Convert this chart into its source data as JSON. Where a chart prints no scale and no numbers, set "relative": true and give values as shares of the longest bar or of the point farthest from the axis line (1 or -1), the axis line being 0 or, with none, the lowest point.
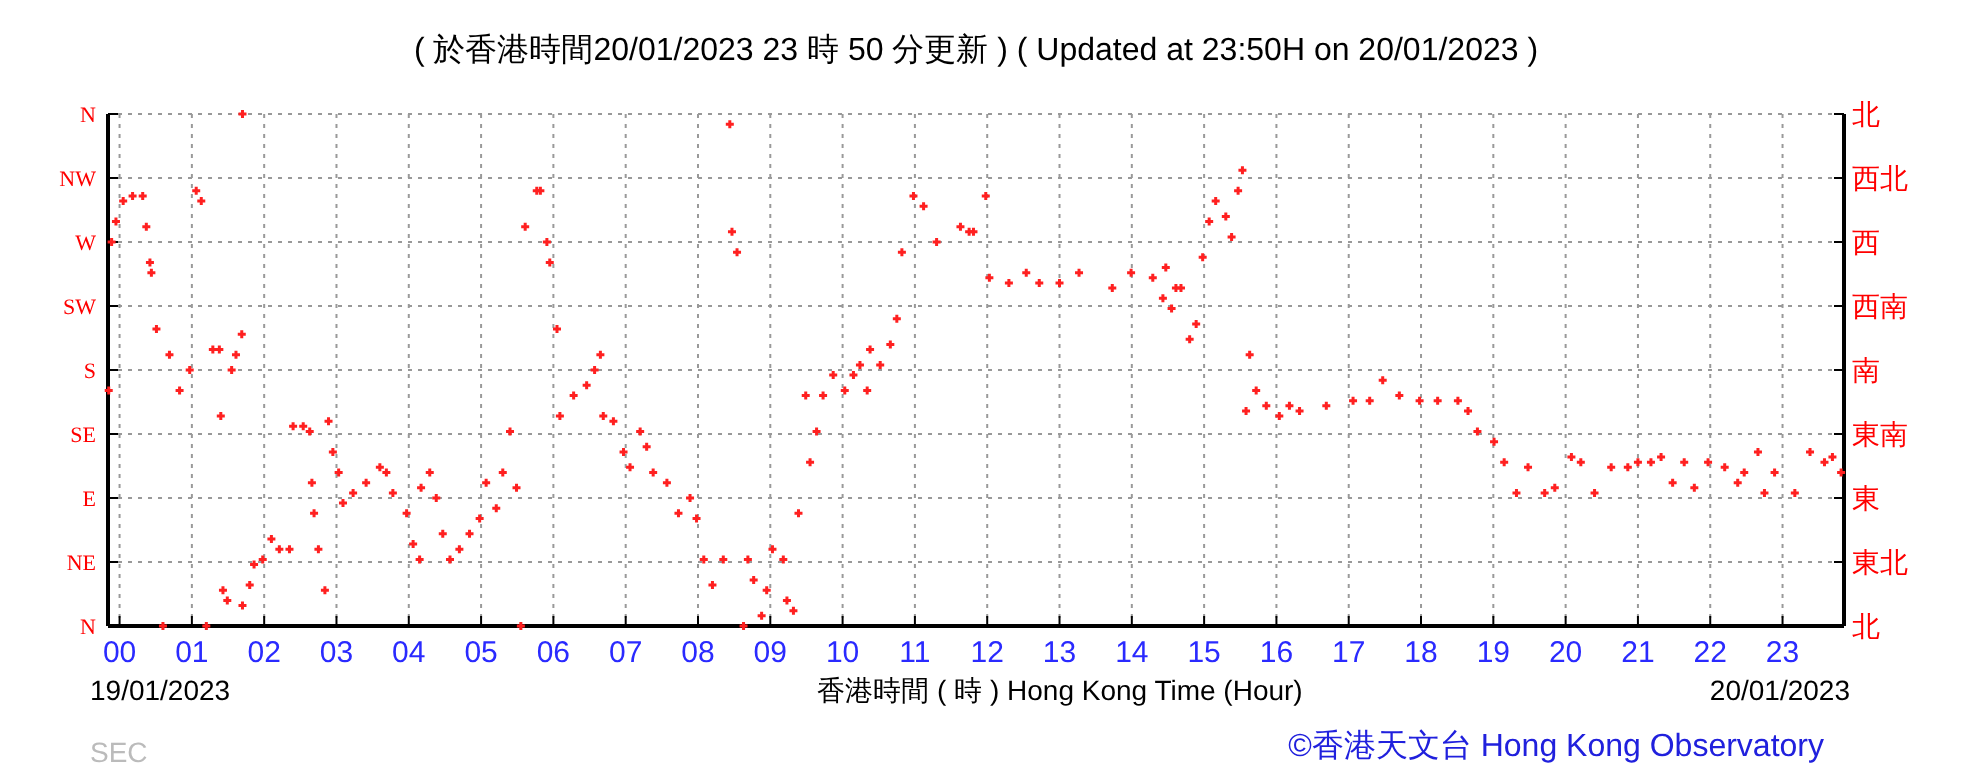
{
  "chart_data": {
    "type": "scatter",
    "title": "( 於香港時間20/01/2023 23 時 50 分更新 ) ( Updated at 23:50H on 20/01/2023 )",
    "xlabel": "香港時間 ( 時 ) Hong Kong Time (Hour)",
    "annotations": [
      "19/01/2023",
      "20/01/2023",
      "SEC",
      "©香港天文台 Hong Kong Observatory"
    ],
    "xlim": [
      -0.16,
      23.85
    ],
    "xticks": [
      {
        "value": 0,
        "label": "00"
      },
      {
        "value": 1,
        "label": "01"
      },
      {
        "value": 2,
        "label": "02"
      },
      {
        "value": 3,
        "label": "03"
      },
      {
        "value": 4,
        "label": "04"
      },
      {
        "value": 5,
        "label": "05"
      },
      {
        "value": 6,
        "label": "06"
      },
      {
        "value": 7,
        "label": "07"
      },
      {
        "value": 8,
        "label": "08"
      },
      {
        "value": 9,
        "label": "09"
      },
      10,
      11,
      12,
      13,
      14,
      15,
      16,
      17,
      18,
      19,
      20,
      21,
      22,
      23
    ],
    "relative": true,
    "y_categories": [
      "N",
      "NW",
      "W",
      "SW",
      "S",
      "SE",
      "E",
      "NE",
      "N"
    ],
    "y2_categories": [
      "北",
      "西北",
      "西",
      "西南",
      "南",
      "東南",
      "東",
      "東北",
      "北"
    ],
    "grid": true,
    "marker": "cross",
    "series": [
      {
        "color": "#ff2020",
        "x": [
          -0.15,
          -0.11,
          -0.05,
          0.05,
          0.18,
          0.32,
          0.37,
          0.42,
          0.44,
          0.51,
          0.6,
          0.69,
          0.83,
          0.97,
          1.06,
          1.13,
          1.2,
          1.29,
          1.38,
          1.4,
          1.43,
          1.49,
          1.55,
          1.61,
          1.69,
          1.7,
          1.7,
          1.8,
          1.86,
          1.98,
          2.1,
          2.21,
          2.35,
          2.4,
          2.54,
          2.63,
          2.66,
          2.69,
          2.75,
          2.84,
          2.89,
          2.95,
          3.03,
          3.09,
          3.23,
          3.41,
          3.6,
          3.69,
          3.78,
          3.97,
          4.06,
          4.15,
          4.17,
          4.29,
          4.38,
          4.47,
          4.57,
          4.7,
          4.84,
          4.98,
          5.07,
          5.21,
          5.3,
          5.4,
          5.49,
          5.55,
          5.61,
          5.77,
          5.82,
          5.91,
          5.95,
          6.05,
          6.09,
          6.28,
          6.46,
          6.57,
          6.65,
          6.69,
          6.83,
          6.97,
          7.06,
          7.2,
          7.29,
          7.38,
          7.57,
          7.73,
          7.89,
          7.98,
          8.08,
          8.2,
          8.35,
          8.44,
          8.47,
          8.54,
          8.63,
          8.69,
          8.77,
          8.88,
          8.95,
          9.03,
          9.18,
          9.23,
          9.32,
          9.39,
          9.49,
          9.55,
          9.64,
          9.73,
          9.87,
          10.03,
          10.15,
          10.24,
          10.34,
          10.38,
          10.52,
          10.66,
          10.75,
          10.82,
          10.98,
          11.12,
          11.3,
          11.63,
          11.75,
          11.81,
          11.98,
          12.03,
          12.3,
          12.54,
          12.72,
          13.0,
          13.27,
          13.73,
          13.99,
          14.29,
          14.43,
          14.47,
          14.55,
          14.61,
          14.68,
          14.8,
          14.89,
          14.98,
          15.07,
          15.16,
          15.3,
          15.38,
          15.47,
          15.53,
          15.58,
          15.63,
          15.72,
          15.86,
          16.04,
          16.18,
          16.32,
          16.69,
          17.06,
          17.29,
          17.47,
          17.7,
          17.98,
          18.23,
          18.51,
          18.65,
          18.78,
          19.01,
          19.15,
          19.32,
          19.48,
          19.71,
          19.85,
          20.08,
          20.21,
          20.4,
          20.63,
          20.86,
          21.0,
          21.18,
          21.32,
          21.48,
          21.64,
          21.78,
          21.97,
          22.2,
          22.38,
          22.47,
          22.66,
          22.75,
          22.89,
          23.17,
          23.38,
          23.58,
          23.69,
          23.81
        ],
        "values": [
          0.46,
          0.75,
          0.79,
          0.83,
          0.84,
          0.84,
          0.78,
          0.71,
          0.69,
          0.58,
          0,
          0.53,
          0.46,
          0.5,
          0.85,
          0.83,
          0,
          0.54,
          0.54,
          0.41,
          0.07,
          0.05,
          0.5,
          0.53,
          0.57,
          1,
          0.04,
          0.08,
          0.12,
          0.13,
          0.17,
          0.15,
          0.15,
          0.39,
          0.39,
          0.38,
          0.28,
          0.22,
          0.15,
          0.07,
          0.4,
          0.34,
          0.3,
          0.24,
          0.26,
          0.28,
          0.31,
          0.3,
          0.26,
          0.22,
          0.16,
          0.13,
          0.27,
          0.3,
          0.25,
          0.18,
          0.13,
          0.15,
          0.18,
          0.21,
          0.28,
          0.23,
          0.3,
          0.38,
          0.27,
          0,
          0.78,
          0.85,
          0.85,
          0.75,
          0.71,
          0.58,
          0.41,
          0.45,
          0.47,
          0.5,
          0.53,
          0.41,
          0.4,
          0.34,
          0.31,
          0.38,
          0.35,
          0.3,
          0.28,
          0.22,
          0.25,
          0.21,
          0.13,
          0.08,
          0.13,
          0.98,
          0.77,
          0.73,
          0,
          0.13,
          0.09,
          0.02,
          0.07,
          0.15,
          0.13,
          0.05,
          0.03,
          0.22,
          0.45,
          0.32,
          0.38,
          0.45,
          0.49,
          0.46,
          0.49,
          0.51,
          0.46,
          0.54,
          0.51,
          0.55,
          0.6,
          0.73,
          0.84,
          0.82,
          0.75,
          0.78,
          0.77,
          0.77,
          0.84,
          0.68,
          0.67,
          0.69,
          0.67,
          0.67,
          0.69,
          0.66,
          0.69,
          0.68,
          0.64,
          0.7,
          0.62,
          0.66,
          0.66,
          0.56,
          0.59,
          0.72,
          0.79,
          0.83,
          0.8,
          0.76,
          0.85,
          0.89,
          0.42,
          0.53,
          0.46,
          0.43,
          0.41,
          0.43,
          0.42,
          0.43,
          0.44,
          0.44,
          0.48,
          0.45,
          0.44,
          0.44,
          0.44,
          0.42,
          0.38,
          0.36,
          0.32,
          0.26,
          0.31,
          0.26,
          0.27,
          0.33,
          0.32,
          0.26,
          0.31,
          0.31,
          0.32,
          0.32,
          0.33,
          0.28,
          0.32,
          0.27,
          0.32,
          0.31,
          0.28,
          0.3,
          0.34,
          0.26,
          0.3,
          0.26,
          0.34,
          0.32,
          0.33,
          0.3
        ]
      }
    ]
  }
}
